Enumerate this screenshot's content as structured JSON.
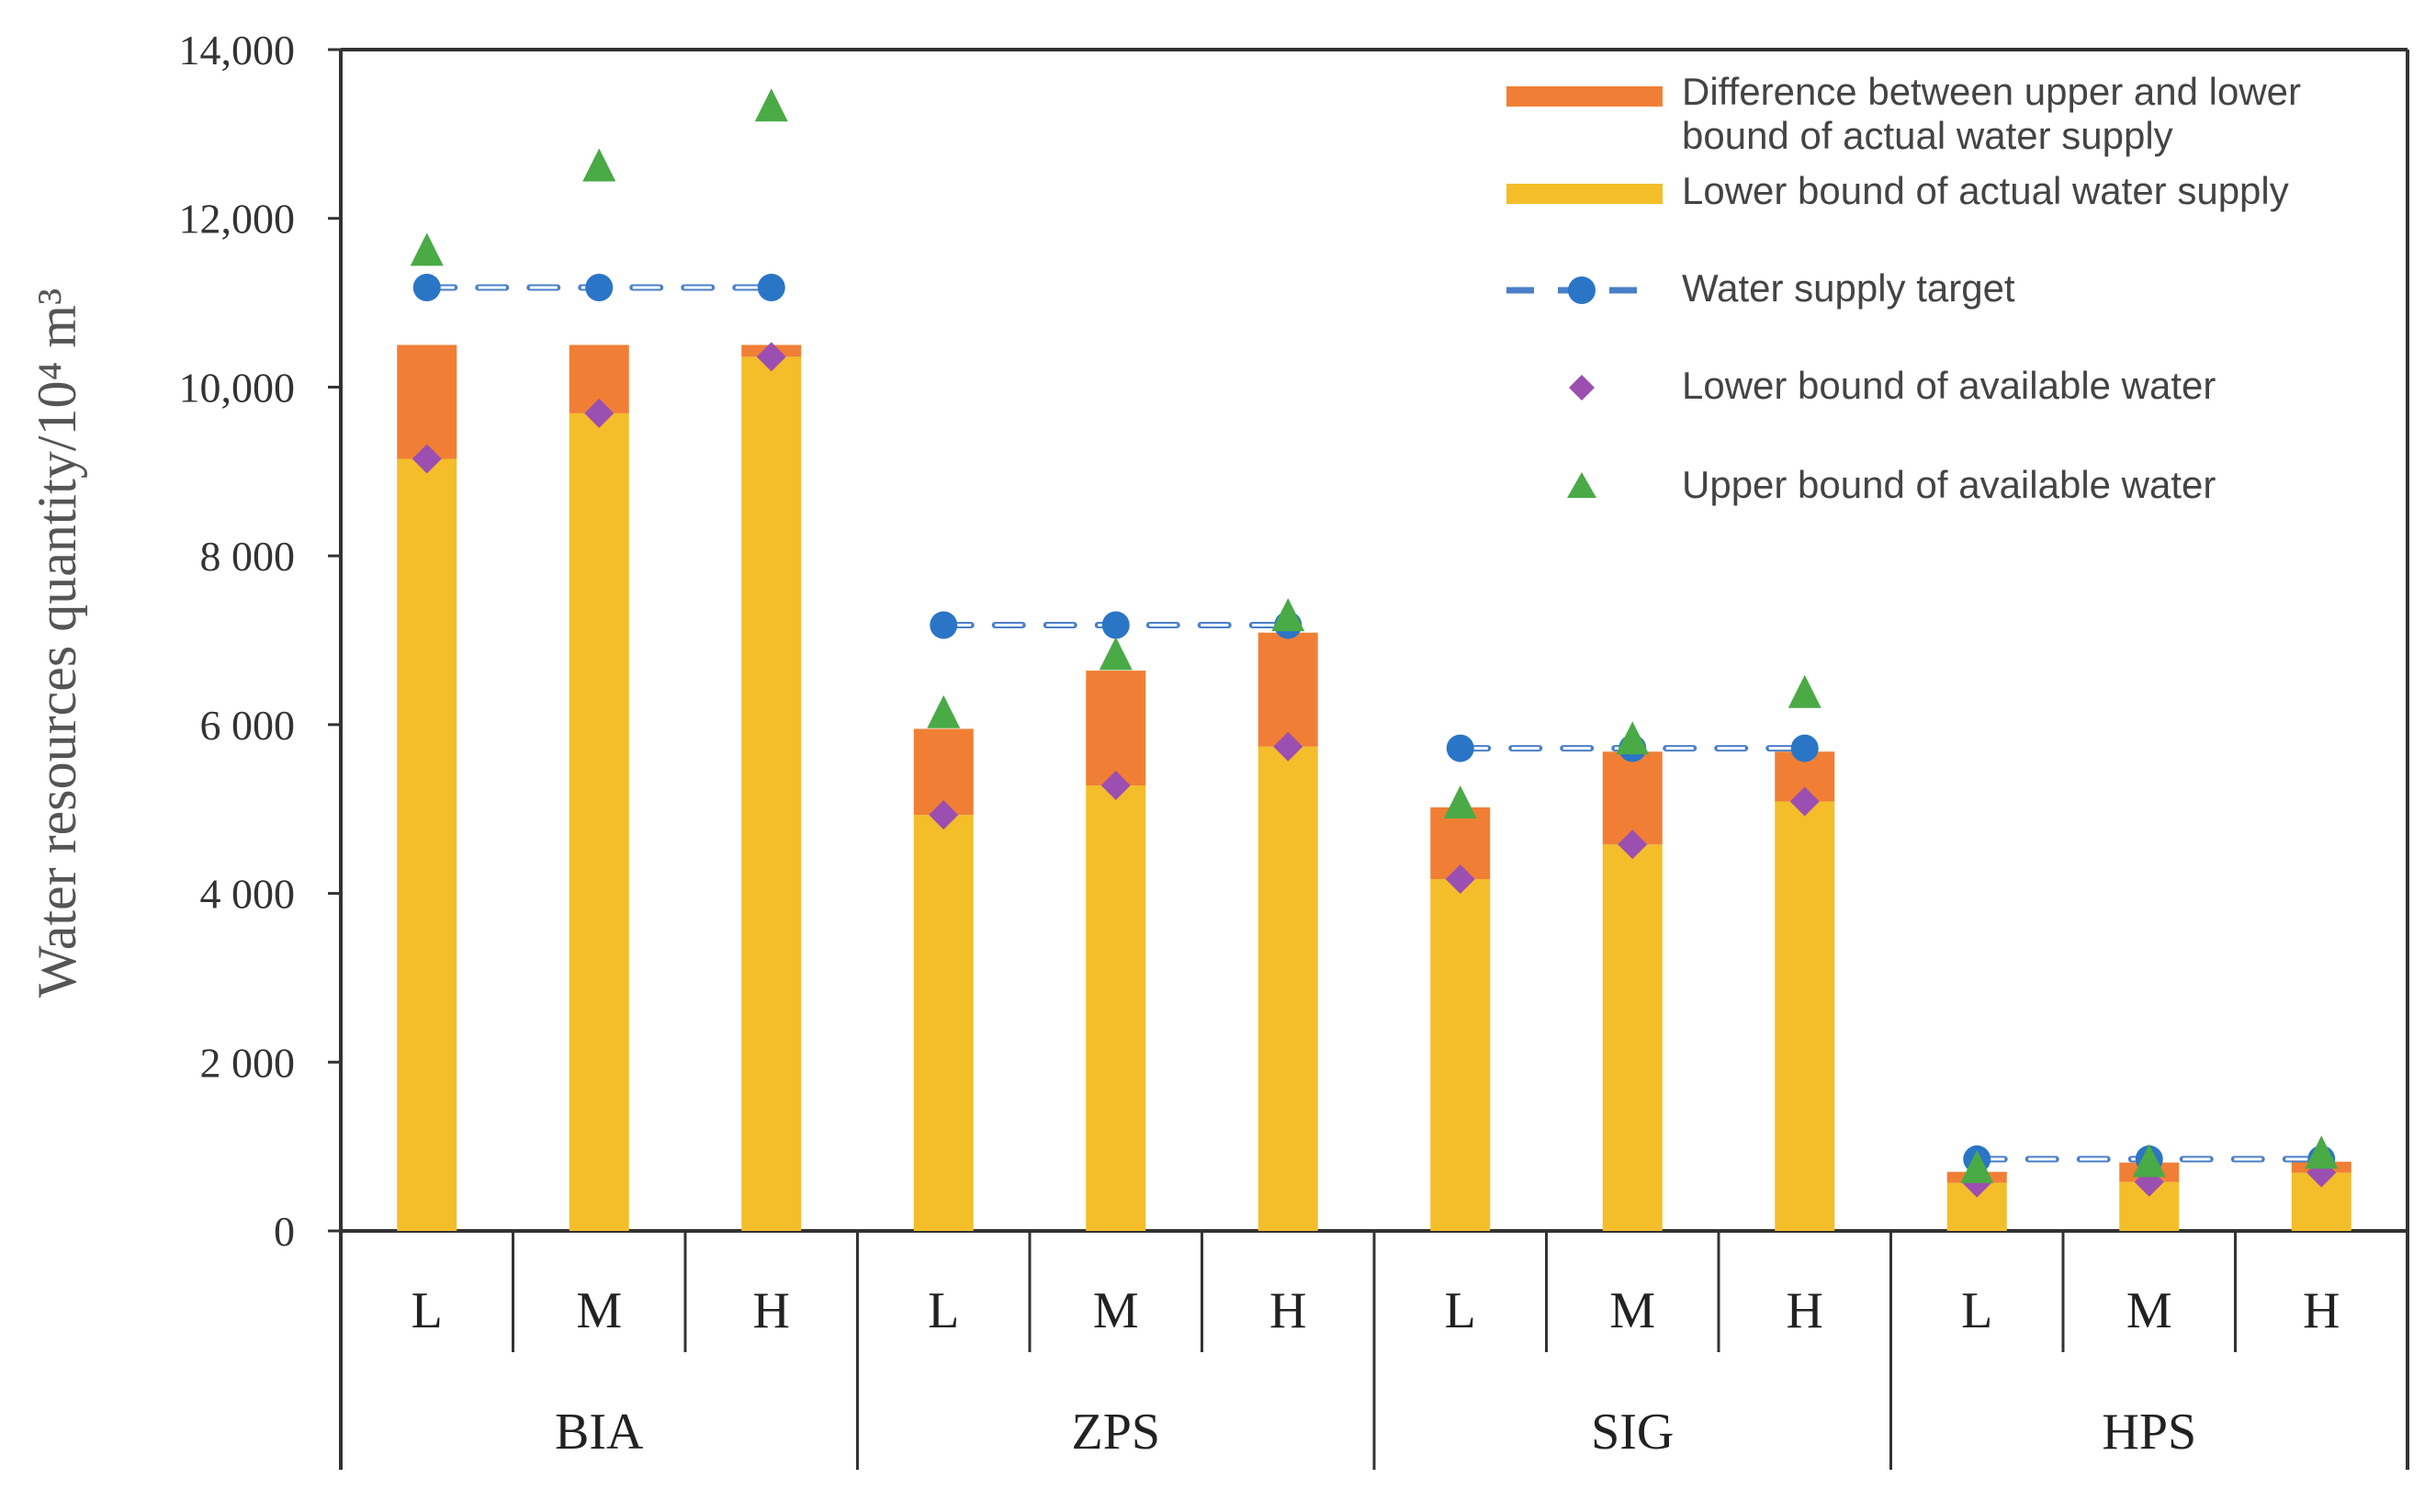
{
  "chart_data": {
    "type": "bar",
    "title": "",
    "ylabel": "Water resources quantity/10⁴ m³",
    "ylim": [
      0,
      14000
    ],
    "yticks": [
      0,
      2000,
      4000,
      6000,
      8000,
      10000,
      12000,
      14000
    ],
    "ytick_labels": [
      "0",
      "2 000",
      "4 000",
      "6 000",
      "8 000",
      "10,000",
      "12,000",
      "14,000"
    ],
    "groups": [
      {
        "name": "BIA",
        "target": 11180
      },
      {
        "name": "ZPS",
        "target": 7180
      },
      {
        "name": "SIG",
        "target": 5720
      },
      {
        "name": "HPS",
        "target": 850
      }
    ],
    "categories": [
      "L",
      "M",
      "H",
      "L",
      "M",
      "H",
      "L",
      "M",
      "H",
      "L",
      "M",
      "H"
    ],
    "series": [
      {
        "name": "Lower bound of actual water supply",
        "type": "stacked-bar",
        "color": "#f4bd2a",
        "values": [
          9150,
          9690,
          10360,
          4930,
          5280,
          5740,
          4170,
          4580,
          5090,
          570,
          580,
          690
        ]
      },
      {
        "name": "Difference between upper and lower bound of actual water supply",
        "type": "stacked-bar",
        "color": "#f07f35",
        "values": [
          1350,
          810,
          140,
          1020,
          1360,
          1350,
          850,
          1100,
          590,
          130,
          230,
          130
        ]
      },
      {
        "name": "Water supply target",
        "type": "line-dashed",
        "color": "#2a75c6",
        "values": [
          11180,
          11180,
          11180,
          7180,
          7180,
          7180,
          5720,
          5720,
          5720,
          850,
          850,
          850
        ]
      },
      {
        "name": "Lower bound of available water",
        "type": "scatter-diamond",
        "color": "#9b4fb0",
        "values": [
          9150,
          9690,
          10360,
          4930,
          5280,
          5740,
          4170,
          4580,
          5090,
          570,
          580,
          690
        ]
      },
      {
        "name": "Upper bound of available water",
        "type": "scatter-triangle",
        "color": "#4aaa46",
        "values": [
          11590,
          12590,
          13300,
          6110,
          6800,
          7260,
          5040,
          5800,
          6350,
          720,
          790,
          890
        ]
      }
    ],
    "legend": {
      "position": "top-right",
      "entries": [
        {
          "line1": "Difference between upper and lower",
          "line2": "bound of actual water supply"
        },
        {
          "line1": "Lower bound of actual water supply"
        },
        {
          "line1": "Water supply target"
        },
        {
          "line1": "Lower bound of available water"
        },
        {
          "line1": "Upper bound of available water"
        }
      ]
    },
    "grid": false
  }
}
